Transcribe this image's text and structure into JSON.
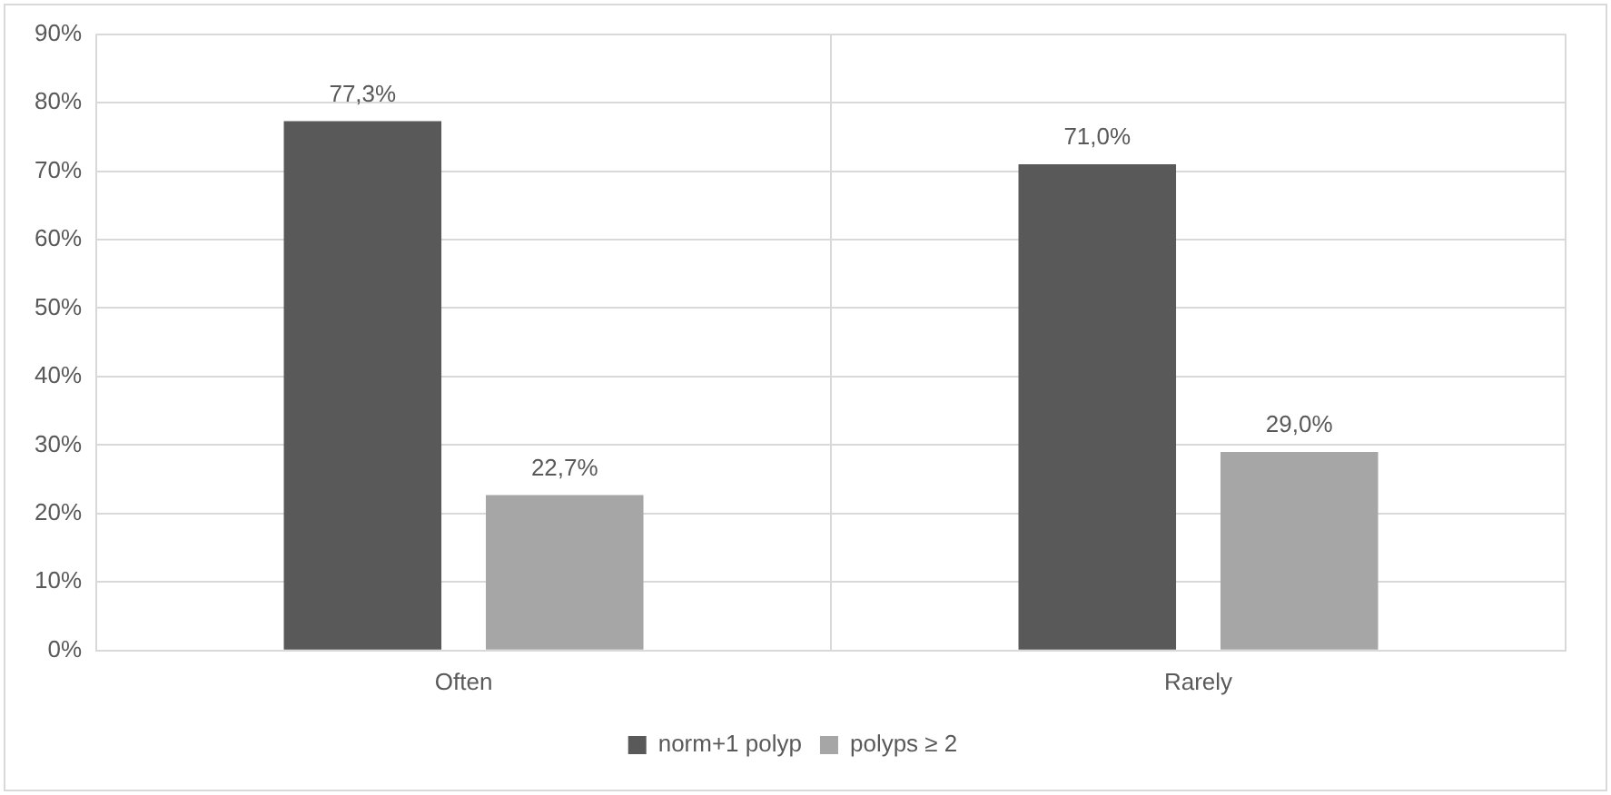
{
  "chart_data": {
    "type": "bar",
    "categories": [
      "Often",
      "Rarely"
    ],
    "series": [
      {
        "name": "norm+1 polyp",
        "color": "#595959",
        "values": [
          77.3,
          71.0
        ],
        "value_labels": [
          "77,3%",
          "71,0%"
        ]
      },
      {
        "name": "polyps ≥ 2",
        "color": "#a6a6a6",
        "values": [
          22.7,
          29.0
        ],
        "value_labels": [
          "22,7%",
          "29,0%"
        ]
      }
    ],
    "ylim": [
      0,
      90
    ],
    "yticks": [
      {
        "value": 0,
        "label": "0%"
      },
      {
        "value": 10,
        "label": "10%"
      },
      {
        "value": 20,
        "label": "20%"
      },
      {
        "value": 30,
        "label": "30%"
      },
      {
        "value": 40,
        "label": "40%"
      },
      {
        "value": 50,
        "label": "50%"
      },
      {
        "value": 60,
        "label": "60%"
      },
      {
        "value": 70,
        "label": "70%"
      },
      {
        "value": 80,
        "label": "80%"
      },
      {
        "value": 90,
        "label": "90%"
      }
    ],
    "grid": true,
    "legend": "bottom"
  }
}
